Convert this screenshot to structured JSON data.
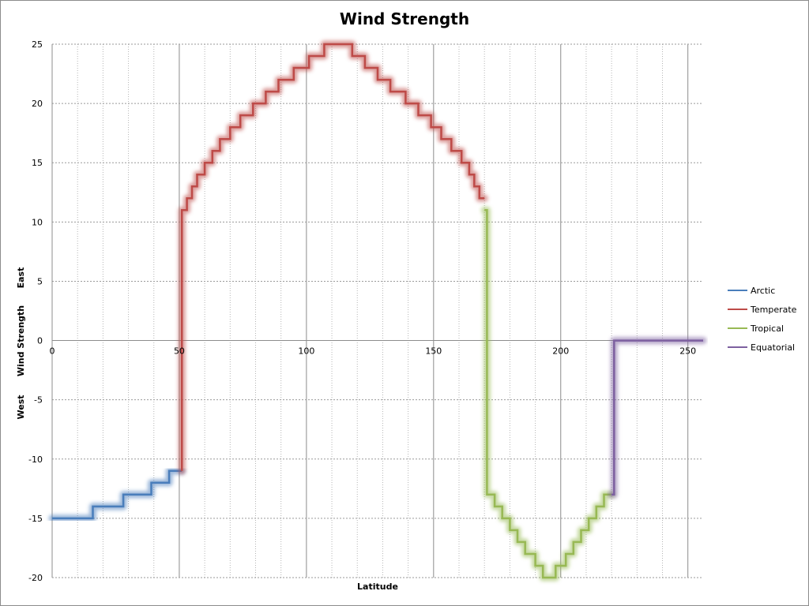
{
  "chart_data": {
    "type": "line",
    "title": "Wind Strength",
    "xlabel": "Latitude",
    "ylabel": "Wind Strength",
    "ylabel_top": "East",
    "ylabel_bottom": "West",
    "xlim": [
      0,
      256
    ],
    "ylim": [
      -20,
      25
    ],
    "xticks": [
      0,
      50,
      100,
      150,
      200,
      250
    ],
    "yticks": [
      -20,
      -15,
      -10,
      -5,
      0,
      5,
      10,
      15,
      20,
      25
    ],
    "grid": true,
    "legend_position": "right",
    "series": [
      {
        "name": "Arctic",
        "color": "#4a7ebb",
        "x": [
          0,
          16,
          16,
          28,
          28,
          39,
          39,
          46,
          46,
          51
        ],
        "y": [
          -15,
          -15,
          -14,
          -14,
          -13,
          -13,
          -12,
          -12,
          -11,
          -11
        ]
      },
      {
        "name": "Temperate",
        "color": "#be4b48",
        "x": [
          51,
          51,
          53,
          53,
          55,
          55,
          57,
          57,
          60,
          60,
          63,
          63,
          66,
          66,
          70,
          70,
          74,
          74,
          79,
          79,
          84,
          84,
          89,
          89,
          95,
          95,
          101,
          101,
          107,
          107,
          118,
          118,
          123,
          123,
          128,
          128,
          133,
          133,
          139,
          139,
          144,
          144,
          149,
          149,
          153,
          153,
          157,
          157,
          161,
          161,
          164,
          164,
          166,
          166,
          168,
          168,
          170
        ],
        "y": [
          -11,
          11,
          11,
          12,
          12,
          13,
          13,
          14,
          14,
          15,
          15,
          16,
          16,
          17,
          17,
          18,
          18,
          19,
          19,
          20,
          20,
          21,
          21,
          22,
          22,
          23,
          23,
          24,
          24,
          25,
          25,
          24,
          24,
          23,
          23,
          22,
          22,
          21,
          21,
          20,
          20,
          19,
          19,
          18,
          18,
          17,
          17,
          16,
          16,
          15,
          15,
          14,
          14,
          13,
          13,
          12,
          12
        ]
      },
      {
        "name": "Tropical",
        "color": "#98b954",
        "x": [
          170,
          171,
          171,
          174,
          174,
          177,
          177,
          180,
          180,
          183,
          183,
          186,
          186,
          190,
          190,
          193,
          193,
          198,
          198,
          202,
          202,
          205,
          205,
          208,
          208,
          211,
          211,
          214,
          214,
          217,
          217,
          220
        ],
        "y": [
          11,
          11,
          -13,
          -13,
          -14,
          -14,
          -15,
          -15,
          -16,
          -16,
          -17,
          -17,
          -18,
          -18,
          -19,
          -19,
          -20,
          -20,
          -19,
          -19,
          -18,
          -18,
          -17,
          -17,
          -16,
          -16,
          -15,
          -15,
          -14,
          -14,
          -13,
          -13
        ]
      },
      {
        "name": "Equatorial",
        "color": "#7d60a0",
        "x": [
          220,
          221,
          221,
          256
        ],
        "y": [
          -13,
          -13,
          0,
          0
        ]
      }
    ]
  }
}
